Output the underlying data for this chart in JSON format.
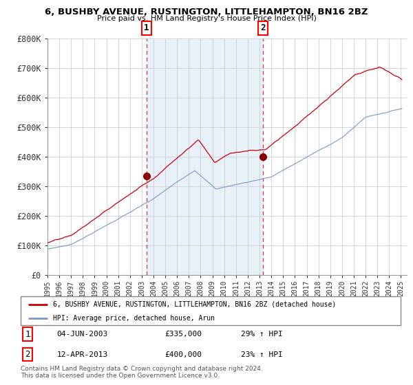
{
  "title": "6, BUSHBY AVENUE, RUSTINGTON, LITTLEHAMPTON, BN16 2BZ",
  "subtitle": "Price paid vs. HM Land Registry's House Price Index (HPI)",
  "bg_color": "#ffffff",
  "plot_bg_color": "#ffffff",
  "highlight_bg": "#e8f0f8",
  "grid_color": "#ccccdd",
  "red_line_color": "#cc0000",
  "blue_line_color": "#7799cc",
  "marker_color": "#880000",
  "sale1_year": 2003.42,
  "sale1_price": 335000,
  "sale2_year": 2013.28,
  "sale2_price": 400000,
  "ylabel_ticks": [
    0,
    100000,
    200000,
    300000,
    400000,
    500000,
    600000,
    700000,
    800000
  ],
  "ylabel_labels": [
    "£0",
    "£100K",
    "£200K",
    "£300K",
    "£400K",
    "£500K",
    "£600K",
    "£700K",
    "£800K"
  ],
  "xtick_years": [
    1995,
    1996,
    1997,
    1998,
    1999,
    2000,
    2001,
    2002,
    2003,
    2004,
    2005,
    2006,
    2007,
    2008,
    2009,
    2010,
    2011,
    2012,
    2013,
    2014,
    2015,
    2016,
    2017,
    2018,
    2019,
    2020,
    2021,
    2022,
    2023,
    2024,
    2025
  ],
  "legend_entries": [
    "6, BUSHBY AVENUE, RUSTINGTON, LITTLEHAMPTON, BN16 2BZ (detached house)",
    "HPI: Average price, detached house, Arun"
  ],
  "annotation1_label": "1",
  "annotation2_label": "2",
  "table_row1": [
    "1",
    "04-JUN-2003",
    "£335,000",
    "29% ↑ HPI"
  ],
  "table_row2": [
    "2",
    "12-APR-2013",
    "£400,000",
    "23% ↑ HPI"
  ],
  "footnote": "Contains HM Land Registry data © Crown copyright and database right 2024.\nThis data is licensed under the Open Government Licence v3.0."
}
